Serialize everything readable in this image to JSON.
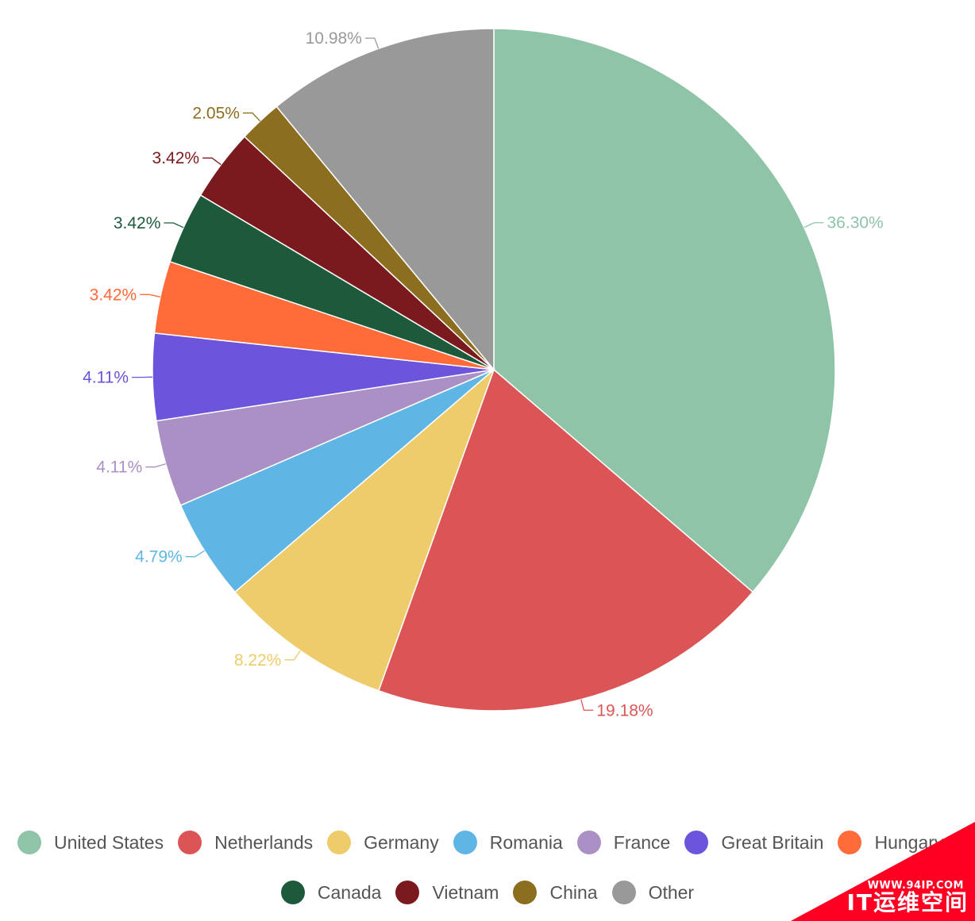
{
  "chart_data": {
    "type": "pie",
    "categories": [
      "United States",
      "Netherlands",
      "Germany",
      "Romania",
      "France",
      "Great Britain",
      "Hungary",
      "Canada",
      "Vietnam",
      "China",
      "Other"
    ],
    "values": [
      36.3,
      19.18,
      8.22,
      4.79,
      4.11,
      4.11,
      3.42,
      3.42,
      3.42,
      2.05,
      10.98
    ],
    "labels": [
      "36.30%",
      "19.18%",
      "8.22%",
      "4.79%",
      "4.11%",
      "4.11%",
      "3.42%",
      "3.42%",
      "3.42%",
      "2.05%",
      "10.98%"
    ],
    "colors": [
      "#8fc4a8",
      "#dc5556",
      "#eecb6b",
      "#5fb6e4",
      "#ab90c6",
      "#6d54dc",
      "#ff6b39",
      "#1d5a3b",
      "#7b1a1e",
      "#8b6e1f",
      "#999999"
    ],
    "legend_placement": "bottom",
    "legend_rows": [
      [
        "United States",
        "Netherlands",
        "Germany",
        "Romania",
        "France",
        "Great Britain",
        "Hungary"
      ],
      [
        "Canada",
        "Vietnam",
        "China",
        "Other"
      ]
    ]
  },
  "watermark": {
    "url": "WWW.94IP.COM",
    "text": "IT运维空间",
    "color": "#ff0022"
  }
}
